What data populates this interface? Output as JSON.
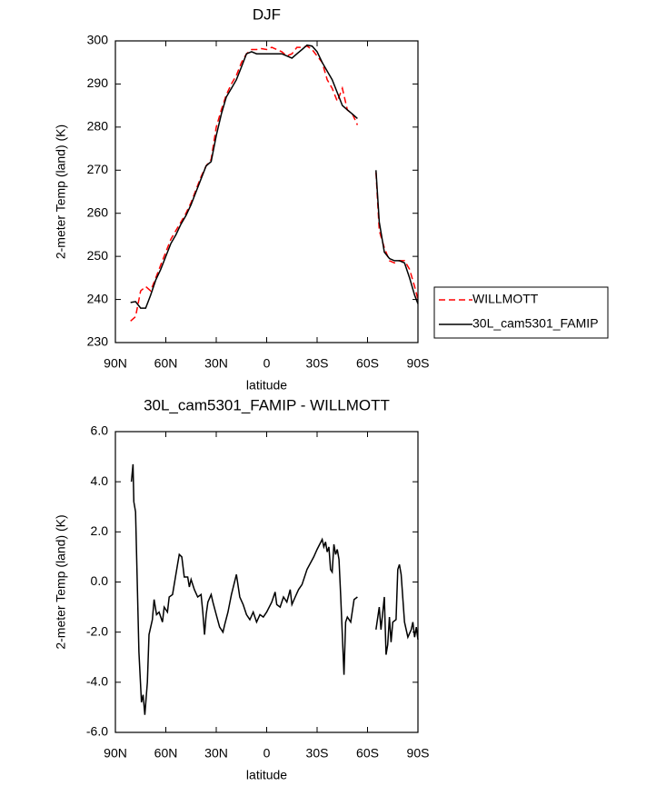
{
  "chart_data": [
    {
      "type": "line",
      "title": "DJF",
      "xlabel": "latitude",
      "ylabel": "2-meter Temp (land) (K)",
      "x": [
        81,
        78,
        75,
        72,
        69,
        66,
        63,
        60,
        57,
        54,
        51,
        48,
        45,
        42,
        39,
        36,
        33,
        30,
        27,
        24,
        21,
        18,
        15,
        12,
        9,
        6,
        3,
        0,
        -3,
        -6,
        -9,
        -12,
        -15,
        -18,
        -21,
        -24,
        -27,
        -30,
        -33,
        -36,
        -39,
        -42,
        -45,
        -48,
        -51,
        -54,
        -60,
        -65,
        -67,
        -70,
        -73,
        -76,
        -79,
        -82,
        -85,
        -88,
        -90
      ],
      "series": [
        {
          "name": "WILLMOTT",
          "color": "#ff0000",
          "style": "dashed",
          "values": [
            235,
            236,
            242,
            243,
            242,
            245,
            248,
            251,
            254,
            256,
            258,
            260,
            262.5,
            265.5,
            268.5,
            271,
            272.5,
            280,
            284,
            287.5,
            290,
            292,
            295,
            297,
            298,
            298,
            298.2,
            298,
            298.5,
            298,
            297.5,
            296.5,
            297,
            298.5,
            298.5,
            298.8,
            298,
            296.5,
            295,
            291,
            289,
            286,
            289,
            284,
            283,
            280.5,
            null,
            269.5,
            256,
            252,
            249,
            248.5,
            249,
            249,
            247,
            243,
            240
          ]
        },
        {
          "name": "30L_cam5301_FAMIP",
          "color": "#000000",
          "style": "solid",
          "values": [
            239.3,
            239.5,
            238,
            238,
            241,
            244.5,
            247,
            250,
            253,
            255,
            257.5,
            259.5,
            262,
            265,
            268,
            271,
            272,
            278,
            283,
            287,
            289,
            291,
            294,
            297,
            297.5,
            297,
            297,
            297,
            297,
            297,
            297,
            296.5,
            296,
            297,
            298,
            299,
            298.8,
            297.5,
            295,
            293,
            291,
            288,
            285,
            284,
            283,
            282,
            null,
            270,
            258,
            251,
            249.5,
            249,
            249,
            248.5,
            245,
            241,
            239
          ]
        }
      ],
      "xlim": [
        90,
        -90
      ],
      "xticks": [
        {
          "value": 90,
          "label": "90N"
        },
        {
          "value": 60,
          "label": "60N"
        },
        {
          "value": 30,
          "label": "30N"
        },
        0,
        {
          "value": -30,
          "label": "30S"
        },
        {
          "value": -60,
          "label": "60S"
        },
        {
          "value": -90,
          "label": "90S"
        }
      ],
      "ylim": [
        230,
        300
      ],
      "yticks": [
        230,
        240,
        250,
        260,
        270,
        280,
        290,
        300
      ],
      "legend": "right"
    },
    {
      "type": "line",
      "title": "30L_cam5301_FAMIP - WILLMOTT",
      "xlabel": "latitude",
      "ylabel": "2-meter Temp (land) (K)",
      "x": [
        80.5,
        79.5,
        79,
        78,
        76,
        74.5,
        73.5,
        72.5,
        71,
        70,
        68,
        67,
        65.5,
        64,
        62,
        61,
        59,
        58,
        56,
        53,
        52,
        50.5,
        49,
        47,
        46,
        45,
        43,
        41,
        39,
        38,
        37,
        36,
        35,
        33,
        32,
        30,
        28,
        26,
        25,
        23,
        21,
        18,
        16,
        14,
        12,
        10,
        8,
        6,
        4,
        2,
        0,
        -3,
        -5,
        -6,
        -8,
        -10,
        -12,
        -14,
        -15,
        -17,
        -19,
        -21,
        -24,
        -28,
        -30,
        -33,
        -34,
        -35,
        -36,
        -37,
        -38,
        -39,
        -40,
        -41,
        -42,
        -43,
        -44,
        -46,
        -47,
        -48,
        -50,
        -52,
        -54,
        -60,
        -65,
        -67,
        -68,
        -70,
        -71,
        -72,
        -73,
        -74,
        -75,
        -77,
        -78,
        -79,
        -80,
        -82,
        -84,
        -86,
        -87,
        -88,
        -89,
        -90
      ],
      "values": [
        4.0,
        4.7,
        3.2,
        2.8,
        -2.8,
        -4.8,
        -4.5,
        -5.3,
        -4.0,
        -2.1,
        -1.5,
        -0.7,
        -1.3,
        -1.2,
        -1.6,
        -1.0,
        -1.2,
        -0.6,
        -0.5,
        0.7,
        1.1,
        1.0,
        0.2,
        0.2,
        -0.2,
        0.1,
        -0.3,
        -0.6,
        -0.5,
        -1.2,
        -2.1,
        -1.3,
        -0.8,
        -0.5,
        -0.8,
        -1.3,
        -1.8,
        -2.0,
        -1.7,
        -1.2,
        -0.5,
        0.3,
        -0.6,
        -0.9,
        -1.3,
        -1.5,
        -1.2,
        -1.6,
        -1.3,
        -1.4,
        -1.2,
        -0.8,
        -0.4,
        -0.9,
        -1.0,
        -0.6,
        -0.8,
        -0.3,
        -0.9,
        -0.6,
        -0.3,
        -0.1,
        0.5,
        1.0,
        1.3,
        1.7,
        1.4,
        1.6,
        1.2,
        1.4,
        0.5,
        0.4,
        1.5,
        1.1,
        1.3,
        0.9,
        -0.5,
        -3.7,
        -1.6,
        -1.4,
        -1.6,
        -0.7,
        -0.6,
        null,
        -1.9,
        -1.0,
        -1.9,
        -0.6,
        -2.9,
        -2.5,
        -1.4,
        -2.4,
        -1.6,
        -1.5,
        0.5,
        0.7,
        0.3,
        -1.6,
        -2.2,
        -1.9,
        -1.6,
        -2.2,
        -1.8,
        -2.3
      ],
      "color": "#000000",
      "style": "solid",
      "xlim": [
        90,
        -90
      ],
      "xticks": [
        {
          "value": 90,
          "label": "90N"
        },
        {
          "value": 60,
          "label": "60N"
        },
        {
          "value": 30,
          "label": "30N"
        },
        0,
        {
          "value": -30,
          "label": "30S"
        },
        {
          "value": -60,
          "label": "60S"
        },
        {
          "value": -90,
          "label": "90S"
        }
      ],
      "ylim": [
        -6,
        6
      ],
      "yticks": [
        {
          "value": -6,
          "label": "-6.0"
        },
        {
          "value": -4,
          "label": "-4.0"
        },
        {
          "value": -2,
          "label": "-2.0"
        },
        {
          "value": 0,
          "label": "0.0"
        },
        {
          "value": 2,
          "label": "2.0"
        },
        {
          "value": 4,
          "label": "4.0"
        },
        {
          "value": 6,
          "label": "6.0"
        }
      ]
    }
  ]
}
